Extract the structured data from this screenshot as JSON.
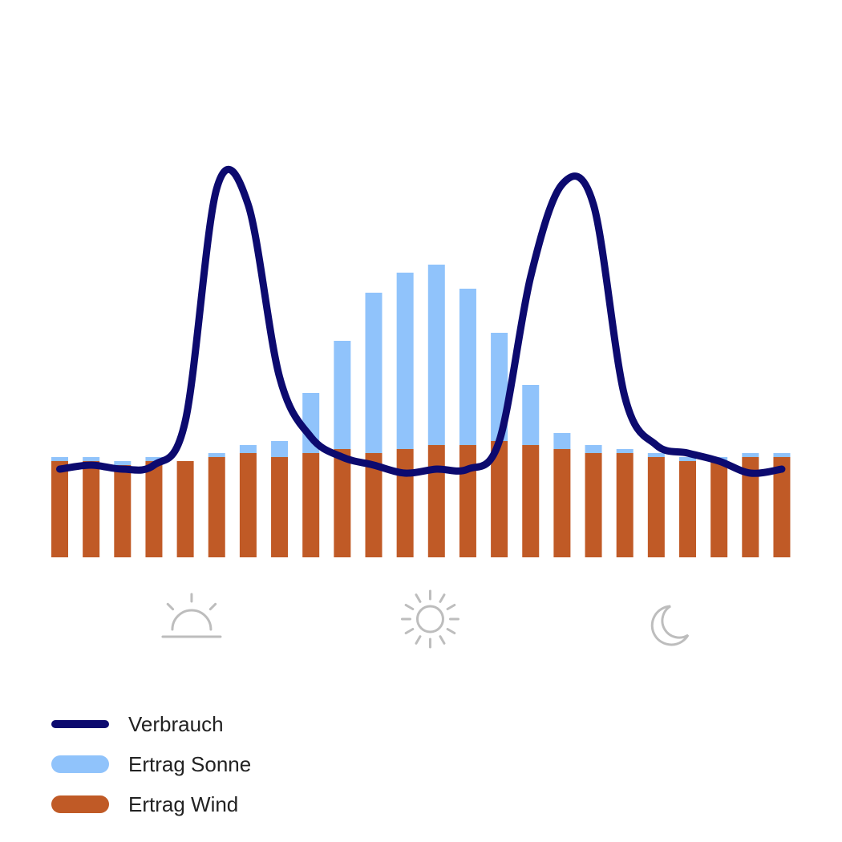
{
  "chart_data": {
    "type": "bar",
    "stacked": true,
    "title": "",
    "xlabel": "",
    "ylabel": "",
    "grid": false,
    "x": [
      1,
      2,
      3,
      4,
      5,
      6,
      7,
      8,
      9,
      10,
      11,
      12,
      13,
      14,
      15,
      16,
      17,
      18,
      19,
      20,
      21,
      22,
      23,
      24
    ],
    "ylim": [
      0,
      100
    ],
    "series": [
      {
        "name": "Ertrag Wind",
        "kind": "bar",
        "color": "#c05a26",
        "values": [
          24,
          24,
          23,
          24,
          24,
          25,
          26,
          25,
          26,
          27,
          26,
          27,
          28,
          28,
          29,
          28,
          27,
          26,
          26,
          25,
          24,
          24,
          25,
          25
        ]
      },
      {
        "name": "Ertrag Sonne",
        "kind": "bar",
        "color": "#90c3fb",
        "values": [
          1,
          1,
          1,
          1,
          0,
          1,
          2,
          4,
          15,
          27,
          40,
          44,
          45,
          39,
          27,
          15,
          4,
          2,
          1,
          1,
          1,
          1,
          1,
          1
        ]
      },
      {
        "name": "Verbrauch",
        "kind": "line",
        "color": "#0c0a6f",
        "values": [
          22,
          23,
          22,
          23,
          34,
          92,
          88,
          45,
          30,
          25,
          23,
          21,
          22,
          22,
          29,
          70,
          93,
          88,
          40,
          28,
          26,
          24,
          21,
          22
        ]
      }
    ],
    "x_icons": [
      {
        "icon": "sunrise-icon",
        "at": 5.2
      },
      {
        "icon": "sun-icon",
        "at": 12.8
      },
      {
        "icon": "moon-icon",
        "at": 20.4
      }
    ],
    "legend": {
      "placement": "bottom-left",
      "items": [
        {
          "label": "Verbrauch",
          "color": "#0c0a6f",
          "shape": "line"
        },
        {
          "label": "Ertrag Sonne",
          "color": "#90c3fb",
          "shape": "bar"
        },
        {
          "label": "Ertrag Wind",
          "color": "#c05a26",
          "shape": "bar"
        }
      ]
    },
    "icon_color": "#bdbdbd"
  }
}
